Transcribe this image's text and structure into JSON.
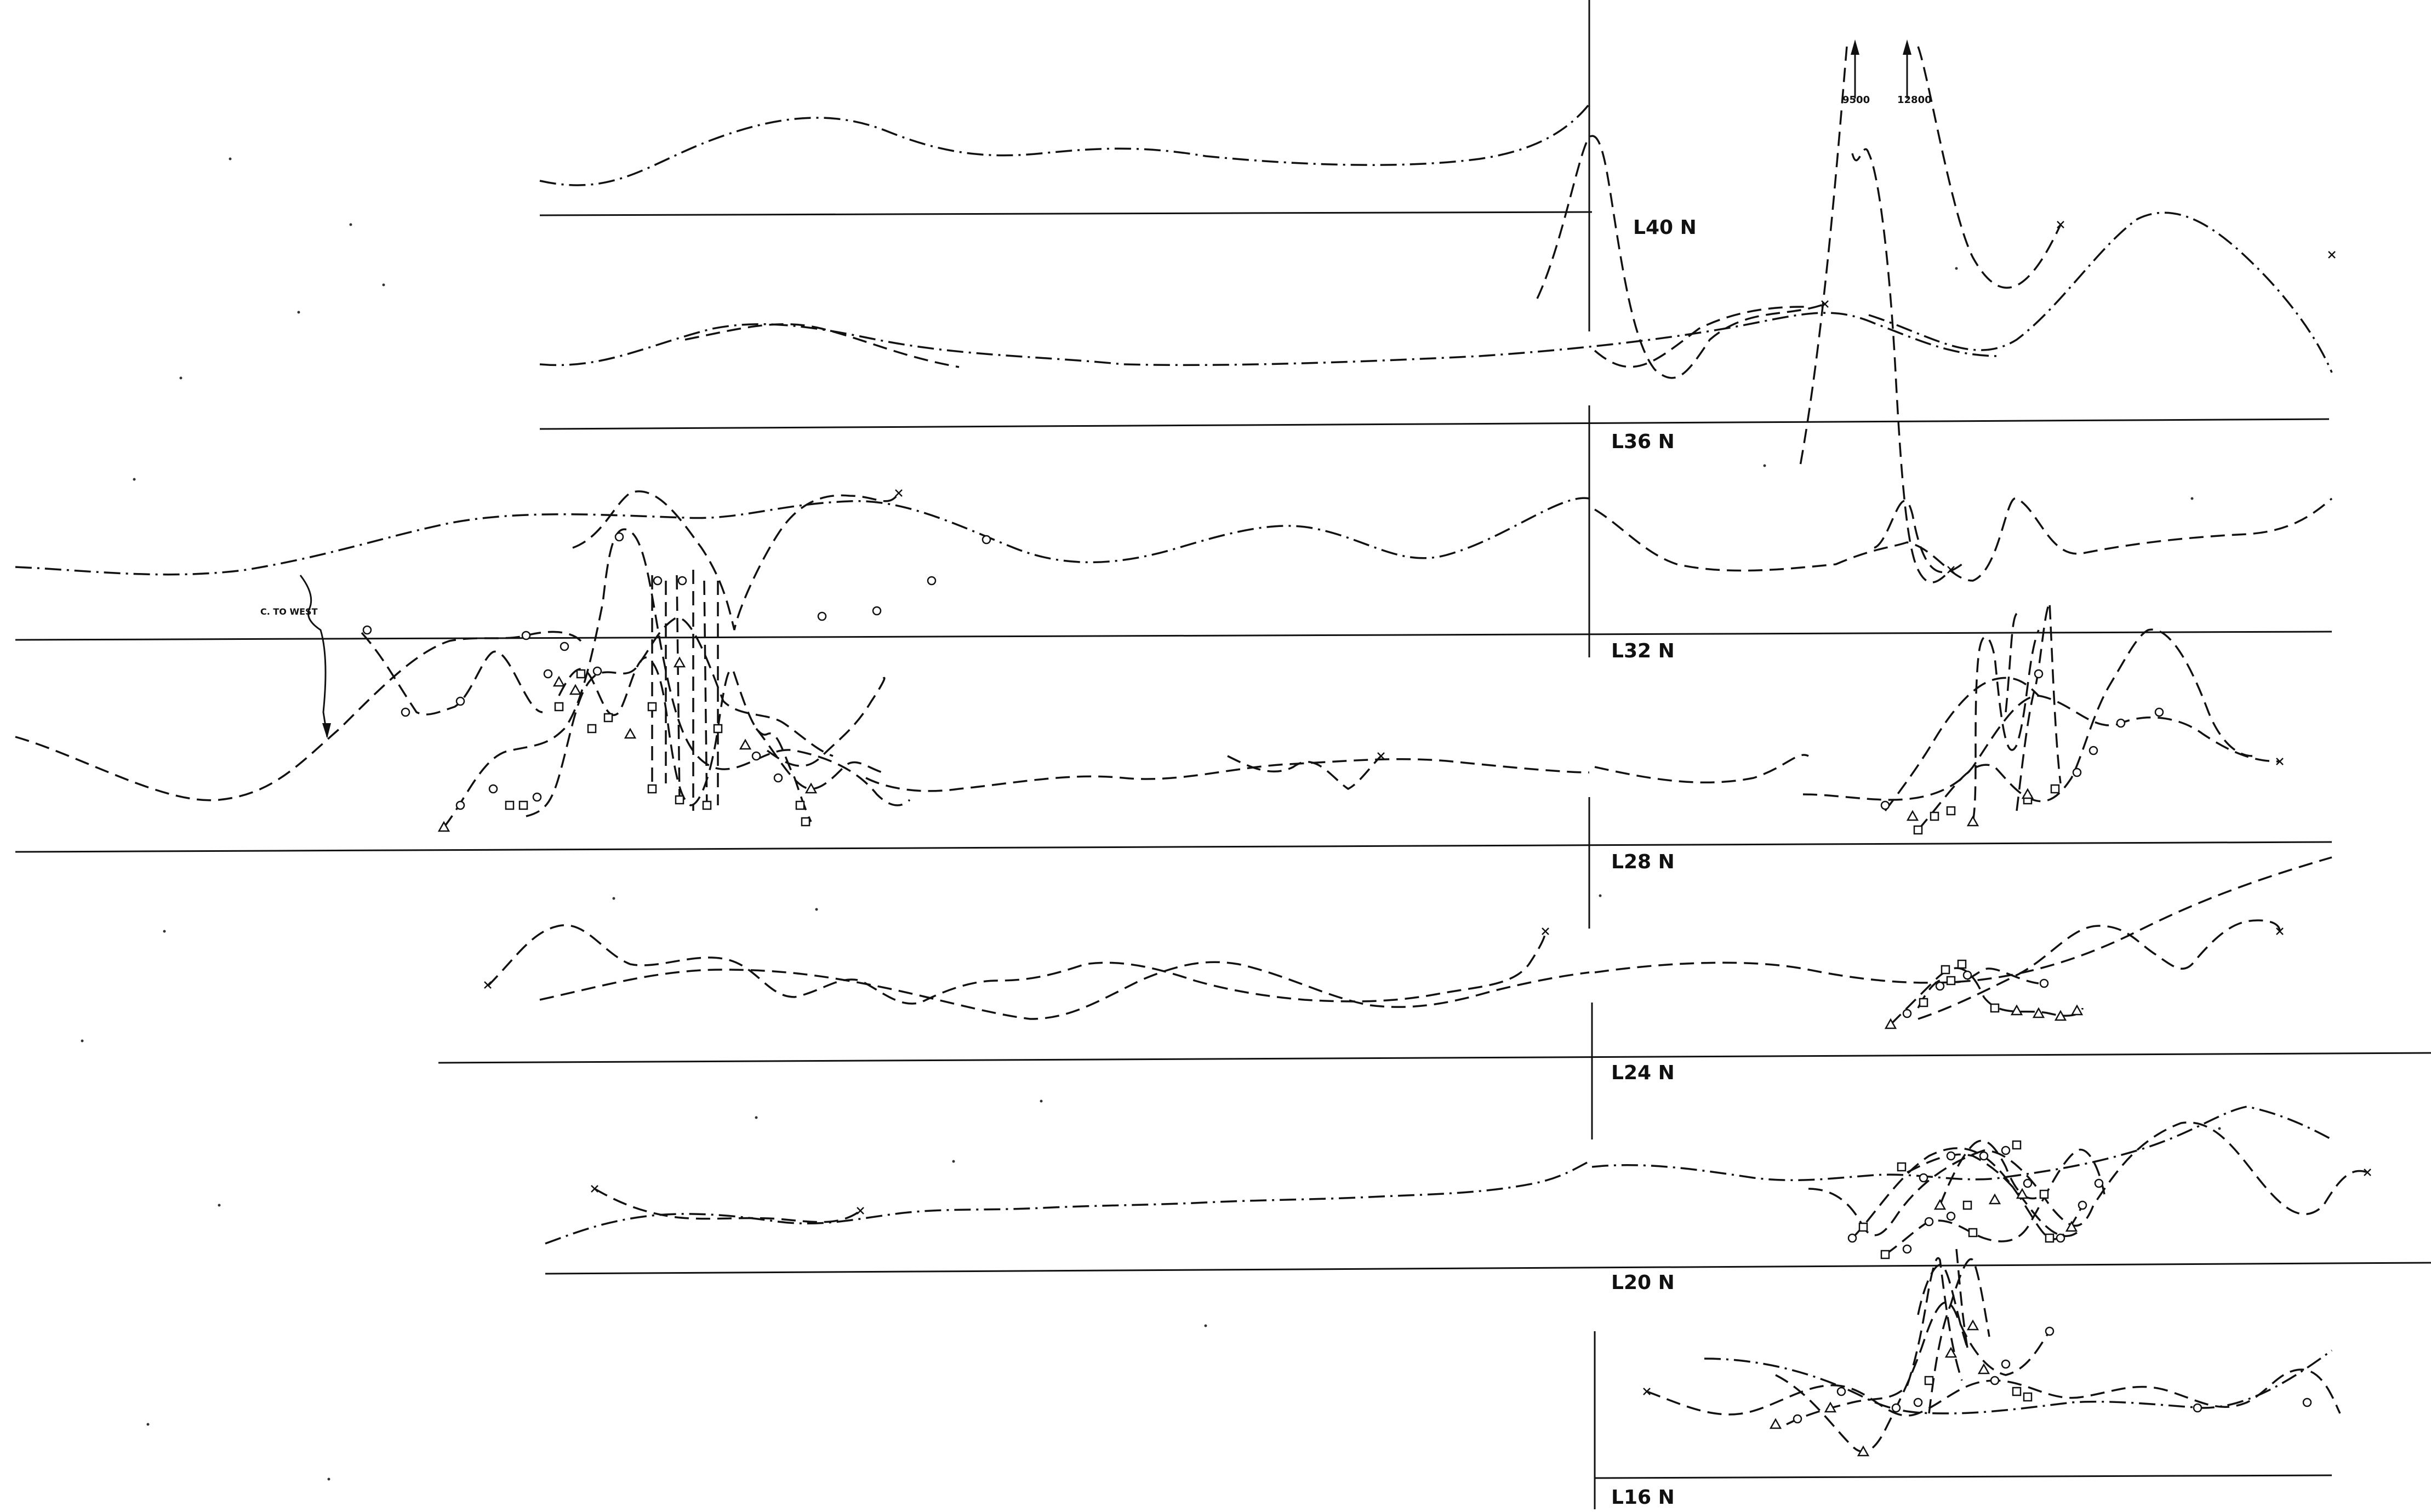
{
  "lines": [
    {
      "id": "l40",
      "label": "L40 N"
    },
    {
      "id": "l36",
      "label": "L36 N"
    },
    {
      "id": "l32",
      "label": "L32 N"
    },
    {
      "id": "l28",
      "label": "L28 N"
    },
    {
      "id": "l24",
      "label": "L24 N"
    },
    {
      "id": "l20",
      "label": "L20 N"
    },
    {
      "id": "l16",
      "label": "L16 N"
    }
  ],
  "offscale_values": [
    "9500",
    "12800"
  ],
  "annotation": "C. TO WEST"
}
